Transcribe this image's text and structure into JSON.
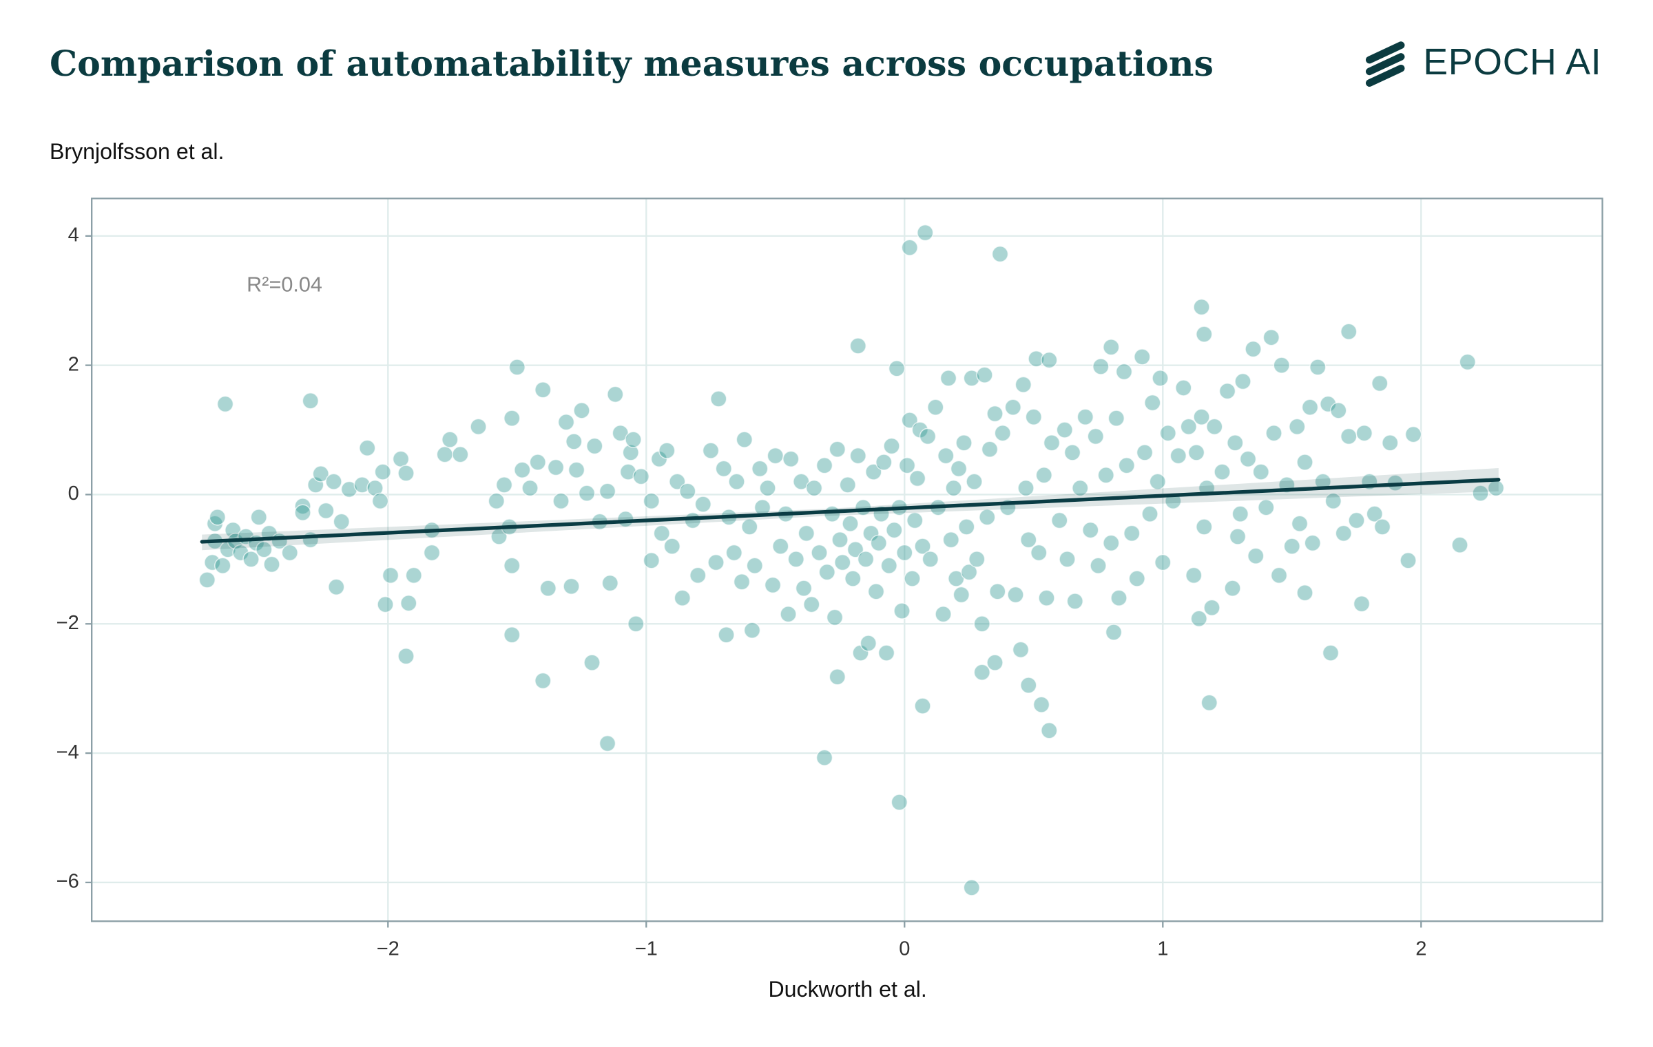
{
  "brand": "EPOCH AI",
  "chart_data": {
    "type": "scatter",
    "title": "Comparison of automatability measures across occupations",
    "y_label": "Brynjolfsson et al.",
    "x_label": "Duckworth et al.",
    "annotation": "R²=0.04",
    "color": "#2e9690",
    "grid": true,
    "xlim": [
      -3.147,
      2.702
    ],
    "ylim": [
      -6.6,
      4.58
    ],
    "xticks": [
      {
        "value": -2,
        "label": "−2"
      },
      {
        "value": -1,
        "label": "−1"
      },
      0,
      1,
      2
    ],
    "yticks": [
      {
        "value": -6,
        "label": "−6"
      },
      {
        "value": -4,
        "label": "−4"
      },
      {
        "value": -2,
        "label": "−2"
      },
      0,
      2,
      4
    ],
    "trend": {
      "color": "#0a3c44",
      "x": [
        -2.72,
        2.3
      ],
      "y": [
        -0.73,
        0.23
      ]
    },
    "trend_ci": {
      "x": [
        -2.72,
        -0.3,
        2.3
      ],
      "lower": [
        -0.86,
        -0.33,
        0.05
      ],
      "upper": [
        -0.62,
        -0.22,
        0.41
      ]
    },
    "x": [
      0.02,
      0.08,
      0.37,
      1.15,
      1.16,
      -0.18,
      0.8,
      2.18,
      1.72,
      -1.5,
      -2.63,
      -2.3,
      0.26,
      -0.02,
      -0.31,
      -1.15,
      0.56,
      1.18,
      0.07,
      0.53,
      -1.4,
      -0.26,
      0.48,
      -1.93,
      -1.21,
      1.65,
      0.35,
      0.3,
      -1.52,
      -1.04,
      -0.69,
      -0.59,
      0.81,
      2.15,
      2.23,
      2.29,
      1.97,
      1.95,
      1.84,
      1.77,
      1.55,
      -2.7,
      -2.68,
      -2.67,
      -2.67,
      -2.66,
      -2.64,
      -2.62,
      -2.6,
      -2.59,
      -2.57,
      -2.55,
      -2.53,
      -2.51,
      -2.5,
      -2.48,
      -2.46,
      -2.45,
      -2.42,
      -2.38,
      -2.33,
      -2.33,
      -2.3,
      -2.28,
      -2.26,
      -2.24,
      -2.21,
      -2.2,
      -2.18,
      -2.15,
      -2.1,
      -2.08,
      -2.05,
      -2.03,
      -2.02,
      -2.01,
      -1.99,
      -1.95,
      -1.93,
      -1.9,
      -1.92,
      -1.83,
      -1.83,
      -1.78,
      -1.76,
      -1.72,
      -1.65,
      -1.58,
      -1.57,
      -1.55,
      -1.53,
      -1.52,
      -1.52,
      -1.48,
      -1.45,
      -1.42,
      -1.4,
      -1.38,
      -1.35,
      -1.33,
      -1.31,
      -1.29,
      -1.28,
      -1.27,
      -1.25,
      -1.23,
      -1.2,
      -1.18,
      -1.15,
      -1.14,
      -1.12,
      -1.1,
      -1.08,
      -1.07,
      -1.06,
      -1.05,
      -1.02,
      -0.98,
      -0.98,
      -0.95,
      -0.94,
      -0.92,
      -0.9,
      -0.88,
      -0.86,
      -0.84,
      -0.82,
      -0.8,
      -0.78,
      -0.75,
      -0.73,
      -0.72,
      -0.7,
      -0.68,
      -0.66,
      -0.65,
      -0.63,
      -0.62,
      -0.6,
      -0.58,
      -0.56,
      -0.55,
      -0.53,
      -0.51,
      -0.5,
      -0.48,
      -0.46,
      -0.45,
      -0.44,
      -0.42,
      -0.4,
      -0.39,
      -0.38,
      -0.36,
      -0.35,
      -0.33,
      -0.31,
      -0.3,
      -0.28,
      -0.27,
      -0.26,
      -0.25,
      -0.24,
      -0.22,
      -0.21,
      -0.2,
      -0.19,
      -0.18,
      -0.17,
      -0.16,
      -0.15,
      -0.14,
      -0.13,
      -0.12,
      -0.11,
      -0.1,
      -0.09,
      -0.08,
      -0.07,
      -0.06,
      -0.05,
      -0.04,
      -0.03,
      -0.02,
      -0.01,
      0,
      0.01,
      0.02,
      0.03,
      0.04,
      0.05,
      0.06,
      0.07,
      0.09,
      0.1,
      0.12,
      0.13,
      0.15,
      0.16,
      0.17,
      0.18,
      0.19,
      0.2,
      0.21,
      0.22,
      0.23,
      0.24,
      0.25,
      0.26,
      0.27,
      0.28,
      0.3,
      0.31,
      0.32,
      0.33,
      0.35,
      0.36,
      0.38,
      0.4,
      0.42,
      0.43,
      0.45,
      0.46,
      0.47,
      0.48,
      0.5,
      0.51,
      0.52,
      0.54,
      0.55,
      0.56,
      0.57,
      0.6,
      0.62,
      0.63,
      0.65,
      0.66,
      0.68,
      0.7,
      0.72,
      0.74,
      0.75,
      0.76,
      0.78,
      0.8,
      0.82,
      0.83,
      0.85,
      0.86,
      0.88,
      0.9,
      0.92,
      0.93,
      0.95,
      0.96,
      0.98,
      0.99,
      1.0,
      1.02,
      1.04,
      1.06,
      1.08,
      1.1,
      1.12,
      1.13,
      1.14,
      1.15,
      1.16,
      1.17,
      1.19,
      1.2,
      1.23,
      1.25,
      1.27,
      1.28,
      1.29,
      1.3,
      1.31,
      1.33,
      1.35,
      1.36,
      1.38,
      1.4,
      1.42,
      1.43,
      1.45,
      1.46,
      1.48,
      1.5,
      1.52,
      1.53,
      1.55,
      1.57,
      1.58,
      1.6,
      1.62,
      1.64,
      1.66,
      1.68,
      1.7,
      1.72,
      1.75,
      1.78,
      1.8,
      1.82,
      1.85,
      1.88,
      1.9
    ],
    "values": [
      3.82,
      4.05,
      3.72,
      2.9,
      2.48,
      2.3,
      2.28,
      2.05,
      2.52,
      1.97,
      1.4,
      1.45,
      -6.08,
      -4.76,
      -4.07,
      -3.85,
      -3.65,
      -3.22,
      -3.27,
      -3.25,
      -2.88,
      -2.82,
      -2.95,
      -2.5,
      -2.6,
      -2.45,
      -2.6,
      -2.75,
      -2.17,
      -2.0,
      -2.17,
      -2.1,
      -2.13,
      -0.78,
      0.02,
      0.1,
      0.93,
      -1.02,
      1.72,
      -1.69,
      -1.52,
      -1.32,
      -1.05,
      -0.72,
      -0.45,
      -0.35,
      -1.1,
      -0.85,
      -0.55,
      -0.72,
      -0.9,
      -0.65,
      -1.0,
      -0.75,
      -0.35,
      -0.85,
      -0.6,
      -1.08,
      -0.72,
      -0.9,
      -0.18,
      -0.28,
      -0.7,
      0.15,
      0.32,
      -0.25,
      0.2,
      -1.43,
      -0.42,
      0.08,
      0.15,
      0.72,
      0.1,
      -0.1,
      0.35,
      -1.7,
      -1.25,
      0.55,
      0.33,
      -1.25,
      -1.68,
      -0.9,
      -0.55,
      0.62,
      0.85,
      0.62,
      1.05,
      -0.1,
      -0.65,
      0.15,
      -0.5,
      1.18,
      -1.1,
      0.38,
      0.1,
      0.5,
      1.62,
      -1.45,
      0.42,
      -0.1,
      1.12,
      -1.42,
      0.82,
      0.38,
      1.3,
      0.02,
      0.75,
      -0.42,
      0.05,
      -1.37,
      1.55,
      0.95,
      -0.38,
      0.35,
      0.65,
      0.85,
      0.28,
      -0.1,
      -1.02,
      0.55,
      -0.6,
      0.68,
      -0.8,
      0.2,
      -1.6,
      0.05,
      -0.4,
      -1.25,
      -0.15,
      0.68,
      -1.05,
      1.48,
      0.4,
      -0.35,
      -0.9,
      0.2,
      -1.35,
      0.85,
      -0.5,
      -1.1,
      0.4,
      -0.2,
      0.1,
      -1.4,
      0.6,
      -0.8,
      -0.3,
      -1.85,
      0.55,
      -1.0,
      0.2,
      -1.45,
      -0.6,
      -1.7,
      0.1,
      -0.9,
      0.45,
      -1.2,
      -0.3,
      -1.9,
      0.7,
      -0.7,
      -1.05,
      0.15,
      -0.45,
      -1.3,
      -0.85,
      0.6,
      -2.45,
      -0.2,
      -1.0,
      -2.3,
      -0.6,
      0.35,
      -1.5,
      -0.75,
      -0.3,
      0.5,
      -2.45,
      -1.1,
      0.75,
      -0.55,
      1.95,
      -0.2,
      -1.8,
      -0.9,
      0.45,
      1.15,
      -1.3,
      -0.4,
      0.25,
      1.0,
      -0.8,
      0.9,
      -1.0,
      1.35,
      -0.2,
      -1.85,
      0.6,
      1.8,
      -0.7,
      0.1,
      -1.3,
      0.4,
      -1.55,
      0.8,
      -0.5,
      -1.2,
      1.8,
      0.2,
      -1.0,
      -2.0,
      1.85,
      -0.35,
      0.7,
      1.25,
      -1.5,
      0.95,
      -0.2,
      1.35,
      -1.55,
      -2.4,
      1.7,
      0.1,
      -0.7,
      1.2,
      2.1,
      -0.9,
      0.3,
      -1.6,
      2.08,
      0.8,
      -0.4,
      1.0,
      -1.0,
      0.65,
      -1.65,
      0.1,
      1.2,
      -0.55,
      0.9,
      -1.1,
      1.98,
      0.3,
      -0.75,
      1.18,
      -1.6,
      1.9,
      0.45,
      -0.6,
      -1.3,
      2.13,
      0.65,
      -0.3,
      1.42,
      0.2,
      1.8,
      -1.05,
      0.95,
      -0.1,
      0.6,
      1.65,
      1.05,
      -1.25,
      0.65,
      -1.92,
      1.2,
      -0.5,
      0.1,
      -1.75,
      1.05,
      0.35,
      1.6,
      -1.45,
      0.8,
      -0.65,
      -0.3,
      1.75,
      0.55,
      2.25,
      -0.95,
      0.35,
      -0.2,
      2.43,
      0.95,
      -1.25,
      2.0,
      0.15,
      -0.8,
      1.05,
      -0.45,
      0.5,
      1.35,
      -0.75,
      1.97,
      0.2,
      1.4,
      -0.1,
      1.3,
      -0.6,
      0.9,
      -0.4,
      0.95,
      0.2,
      -0.3,
      -0.5,
      0.8,
      0.18
    ]
  }
}
